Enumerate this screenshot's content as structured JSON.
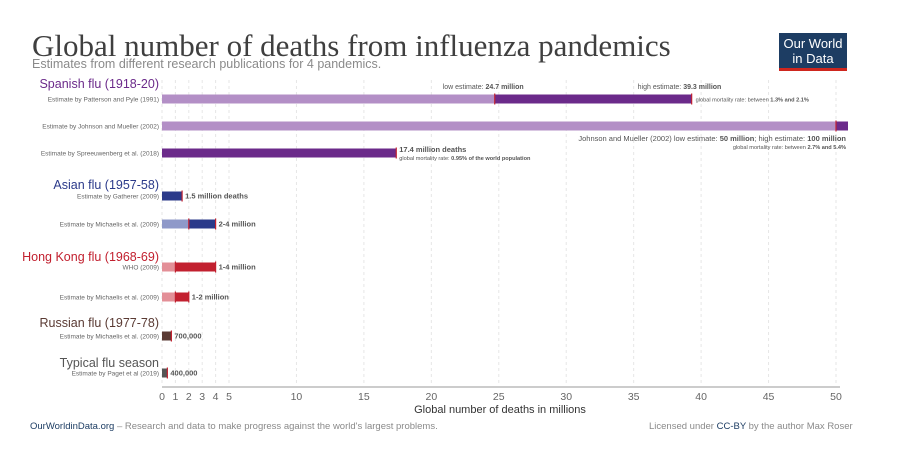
{
  "header": {
    "title": "Global number of deaths from influenza pandemics",
    "subtitle": "Estimates from different research publications for 4 pandemics.",
    "logo_line1": "Our World",
    "logo_line2": "in Data"
  },
  "footer": {
    "site": "OurWorldinData.org",
    "tagline": " – Research and data to make progress against the world's largest problems.",
    "license_prefix": "Licensed under ",
    "license": "CC-BY",
    "license_suffix": " by the author Max Roser"
  },
  "colors": {
    "spanish_dark": "#6b2a8a",
    "spanish_light": "#b38fc6",
    "asian_dark": "#2b3a8a",
    "asian_light": "#8f99c9",
    "hongkong_dark": "#c2202f",
    "hongkong_light": "#e38f97",
    "russian_dark": "#5a3a33",
    "typical_dark": "#555555",
    "marker": "#c2202f"
  },
  "chart_data": {
    "type": "bar",
    "orientation": "horizontal",
    "xlabel": "Global number of deaths in millions",
    "xlim": [
      0,
      50
    ],
    "xticks": [
      0,
      1,
      2,
      3,
      4,
      5,
      10,
      15,
      20,
      25,
      30,
      35,
      40,
      45,
      50
    ],
    "grid": true,
    "groups": [
      {
        "name": "Spanish flu (1918-20)",
        "color_key": "spanish",
        "estimates": [
          {
            "source": "Estimate by Patterson and Pyle (1991)",
            "low": 24.7,
            "high": 39.3,
            "low_label": "low estimate: ",
            "low_value": "24.7 million",
            "high_label": "high estimate: ",
            "high_value": "39.3 million",
            "note_prefix": "global mortality rate: between ",
            "note_value": "1.3% and 2.1%"
          },
          {
            "source": "Estimate by Johnson and Mueller (2002)",
            "low": 50,
            "high": 100,
            "label_a": "Johnson and Mueller (2002) low estimate: ",
            "label_b": "50 million",
            "label_c": "; high estimate: ",
            "label_d": "100 million",
            "note_prefix": "global mortality rate: between ",
            "note_value": "2.7% and 5.4%"
          },
          {
            "source": "Estimate by Spreeuwenberg et al. (2018)",
            "value": 17.4,
            "label": "17.4 million deaths",
            "note_prefix": "global mortality rate: ",
            "note_value": "0.95% of the world population"
          }
        ]
      },
      {
        "name": "Asian flu (1957-58)",
        "color_key": "asian",
        "estimates": [
          {
            "source": "Estimate by Gatherer (2009)",
            "value": 1.5,
            "label": "1.5 million deaths"
          },
          {
            "source": "Estimate by Michaelis et al. (2009)",
            "low": 2,
            "high": 4,
            "label": "2-4 million"
          }
        ]
      },
      {
        "name": "Hong Kong flu (1968-69)",
        "color_key": "hongkong",
        "estimates": [
          {
            "source": "WHO (2009)",
            "low": 1,
            "high": 4,
            "label": "1-4 million"
          },
          {
            "source": "Estimate by Michaelis et al. (2009)",
            "low": 1,
            "high": 2,
            "label": "1-2 million"
          }
        ]
      },
      {
        "name": "Russian flu (1977-78)",
        "color_key": "russian",
        "estimates": [
          {
            "source": "Estimate by Michaelis et al. (2009)",
            "value": 0.7,
            "label": "700,000"
          }
        ]
      },
      {
        "name": "Typical flu season",
        "color_key": "typical",
        "estimates": [
          {
            "source": "Estimate by Paget et al (2019)",
            "value": 0.4,
            "label": "400,000"
          }
        ]
      }
    ]
  }
}
